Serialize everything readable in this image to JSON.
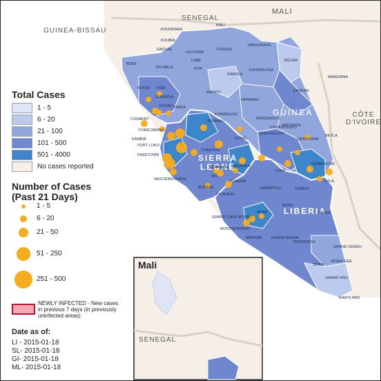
{
  "map": {
    "countries": {
      "mali": "MALI",
      "senegal": "SENEGAL",
      "guinea_bissau": "GUINEA-BISSAU",
      "cote_divoire": "CÔTE\nD'IVOIRE",
      "sierra_leone": "SIERRA\nLEONE",
      "guinea": "GUINEA",
      "liberia": "LIBERIA"
    },
    "places": [
      "KOUNDARA",
      "MALI",
      "KOUBIA",
      "TOUGUE",
      "DINGUIRAYE",
      "SIGUIRI",
      "GAOUAL",
      "LELOUMA",
      "LABE",
      "MANDIANA",
      "BOKE",
      "TELIMELE",
      "PITA",
      "DABOLA",
      "KOUROUSSA",
      "KANKAN",
      "BOFFA",
      "FRIA",
      "DUBREKA",
      "KINDIA",
      "MAMOU",
      "FARANAH",
      "KERQUEDOU",
      "KOYAH",
      "CONAKRY",
      "FORECARIAH",
      "KOINADUGU",
      "KISSIDOUGOU",
      "KAMBIA",
      "PORT LOKO",
      "BOMBALI",
      "TONKOLILI",
      "KONO",
      "GUECKEDOU",
      "MACENTA",
      "KEROUANE",
      "BEYLA",
      "FREETOWN",
      "WESTERN RURAL",
      "MOYAMBA",
      "BO",
      "KENEMA",
      "KAILAHUN",
      "LOFA",
      "NZEREKORE",
      "BONTHE",
      "PUJEHUN",
      "GBARPOLU",
      "YOMOU",
      "LOLA",
      "NIMBA",
      "BOMI",
      "BONG",
      "GRAND CAPE MOUNT",
      "MONTSERRADO",
      "MARGIBI",
      "GRAND BASSA",
      "RIVERCESS",
      "GRAND GEDEH",
      "SINOE",
      "RIVER GEE",
      "GRAND KRU",
      "MARYLAND"
    ],
    "inset_title": "Mali",
    "inset_senegal": "SENEGAL"
  },
  "legend": {
    "total_cases_title": "Total Cases",
    "total_cases": [
      {
        "label": "1 - 5",
        "color": "#dfe5f5"
      },
      {
        "label": "6 - 20",
        "color": "#bccbed"
      },
      {
        "label": "21 - 100",
        "color": "#92a6de"
      },
      {
        "label": "101 - 500",
        "color": "#6e87cf"
      },
      {
        "label": "501 - 4000",
        "color": "#3d86cc"
      },
      {
        "label": "No cases reported",
        "color": "#f5efe8"
      }
    ],
    "past21_title_line1": "Number of Cases",
    "past21_title_line2": "(Past 21 Days)",
    "past21": [
      {
        "label": "1 - 5"
      },
      {
        "label": "6 - 20"
      },
      {
        "label": "21 - 50"
      },
      {
        "label": "51 - 250"
      },
      {
        "label": "251 - 500"
      }
    ],
    "bubble_color": "#f5ac1f",
    "newly_infected_line1": "NEWLY INFECTED - New cases",
    "newly_infected_line2": "in previous 7 days (in previously",
    "newly_infected_line3": "uninfected areas)",
    "newly_infected_color": "#f2a7b2"
  },
  "dates": {
    "title": "Date as of:",
    "lines": [
      "LI - 2015-01-18",
      "SL- 2015-01-18",
      "GI- 2015-01-18",
      "ML- 2015-01-18"
    ]
  }
}
